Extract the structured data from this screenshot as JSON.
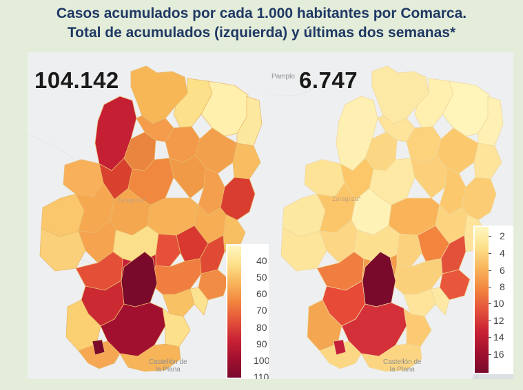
{
  "title": {
    "line1": "Casos acumulados por cada 1.000 habitantes por Comarca.",
    "line2": "Total de acumulados (izquierda) y últimas dos semanas*"
  },
  "left_map": {
    "total": "104.142",
    "cities": {
      "center": "Zaragoza*",
      "bottom_line1": "Castellón de",
      "bottom_line2": "la Plana"
    },
    "legend": {
      "ticks": [
        "40",
        "50",
        "60",
        "70",
        "80",
        "90",
        "100",
        "110"
      ],
      "colors": [
        "#fff7c0",
        "#fde08a",
        "#f9b45a",
        "#f2843f",
        "#e3513a",
        "#c92235",
        "#a2102f",
        "#7a0a2c"
      ]
    }
  },
  "right_map": {
    "total": "6.747",
    "cities": {
      "top": "Pamplo",
      "center": "Zaragoza*",
      "bottom_line1": "Castellón de",
      "bottom_line2": "la Plana"
    },
    "legend": {
      "ticks": [
        "2",
        "4",
        "6",
        "8",
        "10",
        "12",
        "14",
        "16"
      ],
      "colors": [
        "#fff7c0",
        "#fde08a",
        "#f9b45a",
        "#f2843f",
        "#e3513a",
        "#c92235",
        "#a2102f",
        "#7a0a2c"
      ]
    }
  }
}
